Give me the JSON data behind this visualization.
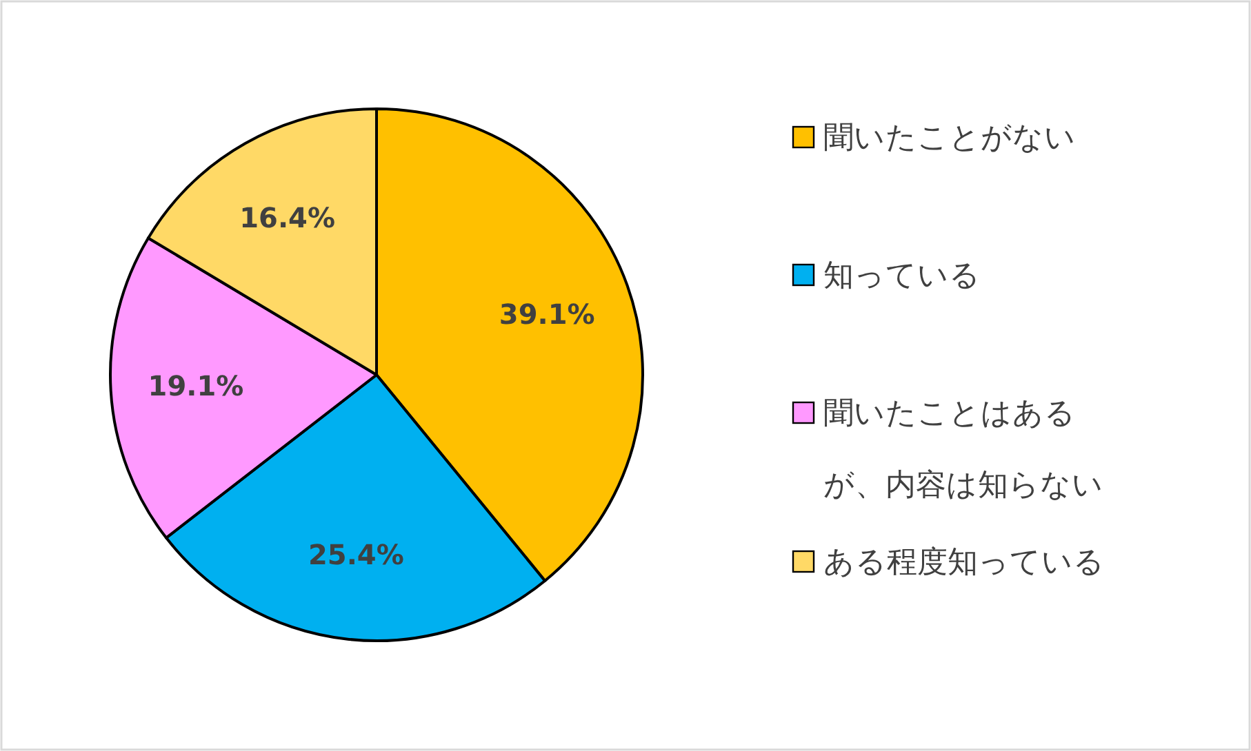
{
  "chart_data": {
    "type": "pie",
    "categories": [
      "聞いたことがない",
      "知っている",
      "聞いたことはあるが、内容は知らない",
      "ある程度知っている"
    ],
    "values": [
      39.1,
      25.4,
      19.1,
      16.4
    ],
    "colors": [
      "#ffc000",
      "#00b0f0",
      "#ff99ff",
      "#ffd966"
    ],
    "value_labels": [
      "39.1%",
      "25.4%",
      "19.1%",
      "16.4%"
    ],
    "legend": "right"
  }
}
